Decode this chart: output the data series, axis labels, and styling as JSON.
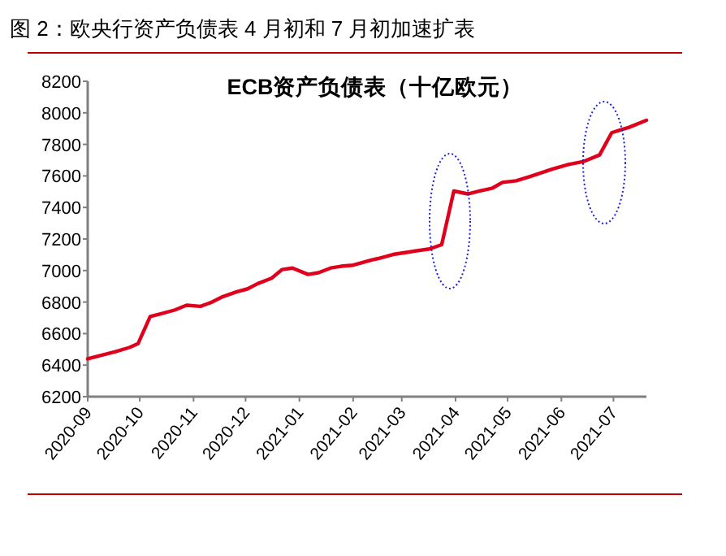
{
  "chart_data": {
    "type": "line",
    "title": "图 2：欧央行资产负债表 4 月初和 7 月初加速扩表",
    "subtitle": "ECB资产负债表（十亿欧元）",
    "x": [
      "2020-09-01",
      "2020-09-17",
      "2020-09-25",
      "2020-09-30",
      "2020-10-07",
      "2020-10-13",
      "2020-10-21",
      "2020-10-28",
      "2020-11-05",
      "2020-11-11",
      "2020-11-18",
      "2020-11-26",
      "2020-12-02",
      "2020-12-08",
      "2020-12-16",
      "2020-12-22",
      "2020-12-28",
      "2021-01-06",
      "2021-01-12",
      "2021-01-19",
      "2021-01-25",
      "2021-02-01",
      "2021-02-12",
      "2021-02-15",
      "2021-02-24",
      "2021-03-06",
      "2021-03-17",
      "2021-03-24",
      "2021-03-31",
      "2021-04-08",
      "2021-04-16",
      "2021-04-22",
      "2021-04-28",
      "2021-05-06",
      "2021-05-14",
      "2021-05-27",
      "2021-06-05",
      "2021-06-14",
      "2021-06-23",
      "2021-06-30",
      "2021-07-10",
      "2021-07-20"
    ],
    "series": [
      {
        "color": "#e0001b",
        "values": [
          6440,
          6485,
          6512,
          6536,
          6708,
          6725,
          6749,
          6780,
          6773,
          6797,
          6835,
          6866,
          6883,
          6917,
          6951,
          7006,
          7016,
          6975,
          6986,
          7016,
          7027,
          7034,
          7068,
          7075,
          7102,
          7119,
          7137,
          7164,
          7504,
          7486,
          7507,
          7521,
          7559,
          7569,
          7596,
          7644,
          7672,
          7692,
          7733,
          7874,
          7908,
          7953
        ]
      }
    ],
    "xlim": [
      "2020-09-01",
      "2021-07-20"
    ],
    "xticks": [
      "2020-09",
      "2020-10",
      "2020-11",
      "2020-12",
      "2021-01",
      "2021-02",
      "2021-03",
      "2021-04",
      "2021-05",
      "2021-06",
      "2021-07"
    ],
    "ylim": [
      6200,
      8200
    ],
    "yticks": [
      6200,
      6400,
      6600,
      6800,
      7000,
      7200,
      7400,
      7600,
      7800,
      8000,
      8200
    ],
    "grid": false,
    "marker": "none",
    "line_style": "solid"
  }
}
